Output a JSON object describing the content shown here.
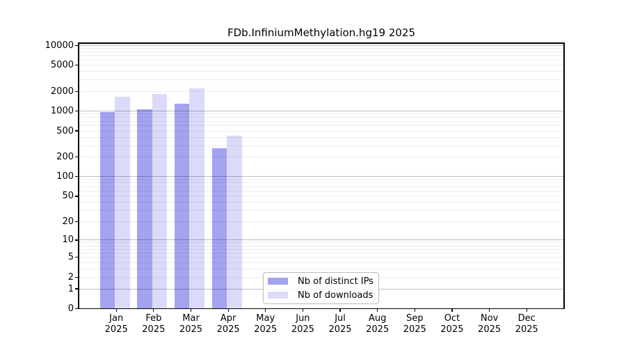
{
  "chart_data": {
    "type": "bar",
    "title": "FDb.InfiniumMethylation.hg19 2025",
    "categories": [
      "Jan",
      "Feb",
      "Mar",
      "Apr",
      "May",
      "Jun",
      "Jul",
      "Aug",
      "Sep",
      "Oct",
      "Nov",
      "Dec"
    ],
    "category_year": "2025",
    "series": [
      {
        "name": "Nb of distinct IPs",
        "color": "#a3a3f0",
        "values": [
          960,
          1080,
          1290,
          275,
          0,
          0,
          0,
          0,
          0,
          0,
          0,
          0
        ]
      },
      {
        "name": "Nb of downloads",
        "color": "#dbdbf9",
        "values": [
          1650,
          1820,
          2200,
          420,
          0,
          0,
          0,
          0,
          0,
          0,
          0,
          0
        ]
      }
    ],
    "y_axis": {
      "scale": "log10(value+1)",
      "range": [
        0,
        10000
      ],
      "ticks": [
        0,
        1,
        2,
        5,
        10,
        20,
        50,
        100,
        200,
        500,
        1000,
        2000,
        5000,
        10000
      ]
    },
    "grid": {
      "major": [
        1,
        10,
        100,
        1000,
        10000
      ],
      "minor": [
        2,
        3,
        4,
        5,
        6,
        7,
        8,
        9,
        20,
        30,
        40,
        50,
        60,
        70,
        80,
        90,
        200,
        300,
        400,
        500,
        600,
        700,
        800,
        900,
        2000,
        3000,
        4000,
        5000,
        6000,
        7000,
        8000,
        9000
      ]
    },
    "legend": {
      "position": "lower center inside plot"
    }
  }
}
